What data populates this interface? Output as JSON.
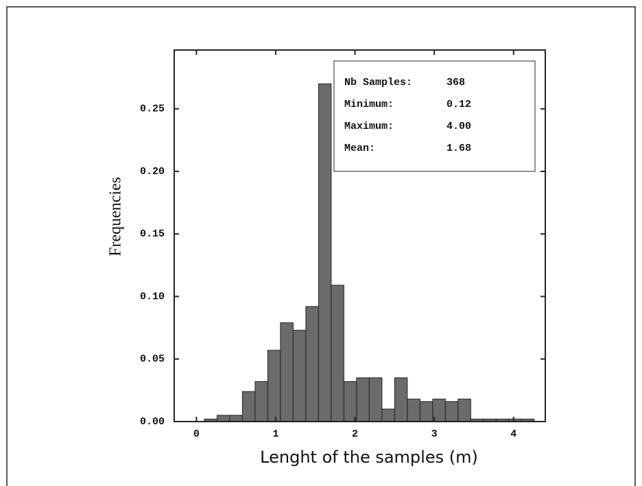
{
  "chart_data": {
    "type": "histogram",
    "xlabel": "Lenght of the samples (m)",
    "ylabel": "Frequencies",
    "bins": [
      0.1,
      0.26,
      0.42,
      0.58,
      0.74,
      0.9,
      1.06,
      1.22,
      1.38,
      1.54,
      1.7,
      1.86,
      2.02,
      2.18,
      2.34,
      2.5,
      2.66,
      2.82,
      2.98,
      3.14,
      3.3,
      3.46,
      3.62,
      3.78,
      3.94,
      4.1,
      4.26
    ],
    "values": [
      0.002,
      0.005,
      0.005,
      0.024,
      0.032,
      0.057,
      0.079,
      0.073,
      0.092,
      0.27,
      0.109,
      0.032,
      0.035,
      0.035,
      0.01,
      0.035,
      0.018,
      0.016,
      0.018,
      0.016,
      0.018,
      0.002,
      0.002,
      0.002,
      0.002,
      0.002
    ],
    "color": "#6b6b6b",
    "xlim": [
      -0.28,
      4.4
    ],
    "ylim": [
      0,
      0.297
    ],
    "xticks": [
      0,
      1,
      2,
      3,
      4
    ],
    "yticks": [
      {
        "value": 0,
        "label": "0.00"
      },
      {
        "value": 0.05,
        "label": "0.05"
      },
      {
        "value": 0.1,
        "label": "0.10"
      },
      {
        "value": 0.15,
        "label": "0.15"
      },
      {
        "value": 0.2,
        "label": "0.20"
      },
      {
        "value": 0.25,
        "label": "0.25"
      }
    ],
    "stats": [
      {
        "label": "Nb Samples:",
        "value": "368"
      },
      {
        "label": "Minimum:",
        "value": "0.12"
      },
      {
        "label": "Maximum:",
        "value": "4.00"
      },
      {
        "label": "Mean:",
        "value": "1.68"
      }
    ]
  }
}
